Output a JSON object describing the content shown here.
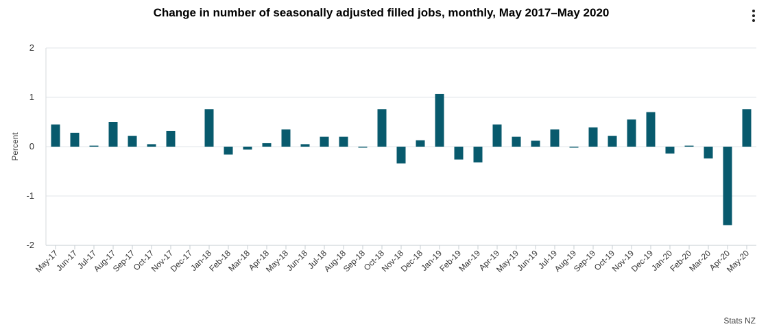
{
  "header": {
    "menu_icon": "more-vertical-icon"
  },
  "credit": "Stats NZ",
  "chart_data": {
    "type": "bar",
    "title": "Change in number of seasonally adjusted filled jobs, monthly, May 2017–May 2020",
    "ylabel": "Percent",
    "xlabel": "",
    "ylim": [
      -2,
      2
    ],
    "yticks": [
      2,
      1,
      0,
      -1,
      -2
    ],
    "grid": true,
    "bar_color": "#085a6d",
    "categories": [
      "May-17",
      "Jun-17",
      "Jul-17",
      "Aug-17",
      "Sep-17",
      "Oct-17",
      "Nov-17",
      "Dec-17",
      "Jan-18",
      "Feb-18",
      "Mar-18",
      "Apr-18",
      "May-18",
      "Jun-18",
      "Jul-18",
      "Aug-18",
      "Sep-18",
      "Oct-18",
      "Nov-18",
      "Dec-18",
      "Jan-19",
      "Feb-19",
      "Mar-19",
      "Apr-19",
      "May-19",
      "Jun-19",
      "Jul-19",
      "Aug-19",
      "Sep-19",
      "Oct-19",
      "Nov-19",
      "Dec-19",
      "Jan-20",
      "Feb-20",
      "Mar-20",
      "Apr-20",
      "May-20"
    ],
    "values": [
      0.45,
      0.28,
      0.02,
      0.5,
      0.22,
      0.05,
      0.32,
      0.0,
      0.76,
      -0.16,
      -0.06,
      0.07,
      0.35,
      0.05,
      0.2,
      0.2,
      -0.02,
      0.76,
      -0.34,
      0.13,
      1.07,
      -0.26,
      -0.32,
      0.45,
      0.2,
      0.12,
      0.35,
      -0.02,
      0.39,
      0.22,
      0.55,
      0.7,
      -0.14,
      0.02,
      -0.24,
      -1.59,
      0.76
    ]
  }
}
